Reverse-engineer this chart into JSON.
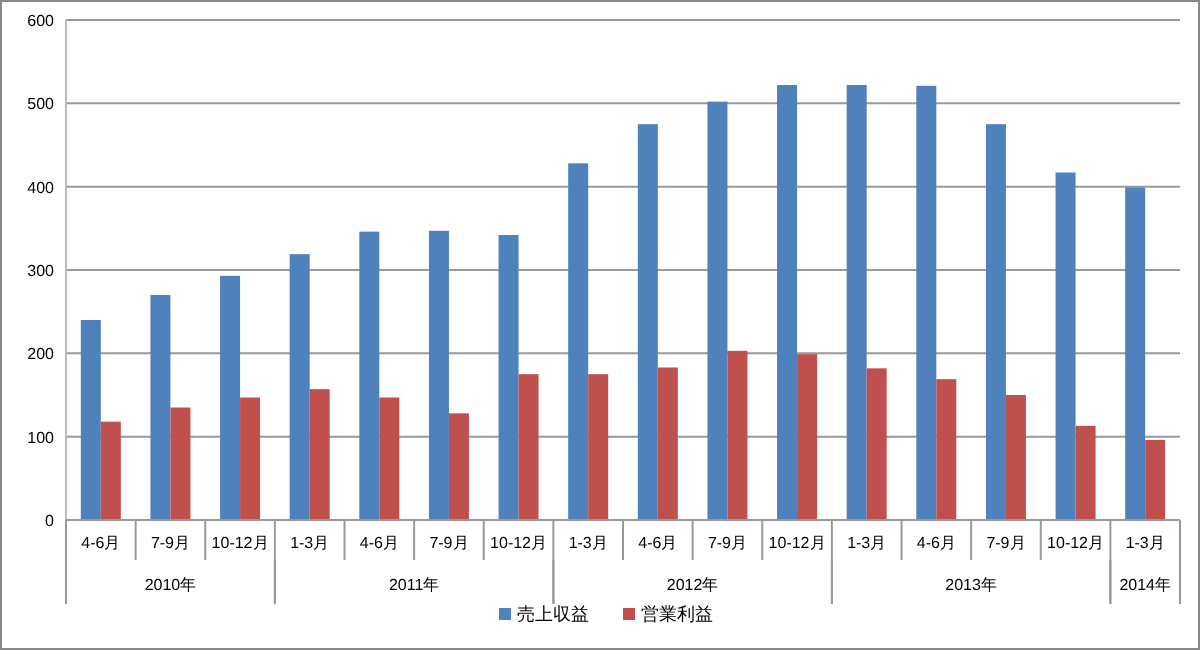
{
  "chart_data": {
    "type": "bar",
    "categories": [
      "4-6月",
      "7-9月",
      "10-12月",
      "1-3月",
      "4-6月",
      "7-9月",
      "10-12月",
      "1-3月",
      "4-6月",
      "7-9月",
      "10-12月",
      "1-3月",
      "4-6月",
      "7-9月",
      "10-12月",
      "1-3月"
    ],
    "series": [
      {
        "name": "売上収益",
        "color": "#4f81bd",
        "values": [
          240,
          270,
          293,
          319,
          346,
          347,
          342,
          428,
          475,
          502,
          522,
          522,
          521,
          475,
          417,
          399
        ]
      },
      {
        "name": "営業利益",
        "color": "#c0504d",
        "values": [
          118,
          135,
          147,
          157,
          147,
          128,
          175,
          175,
          183,
          203,
          199,
          182,
          169,
          150,
          113,
          96
        ]
      }
    ],
    "annotations": [
      "2010年",
      "2011年",
      "2012年",
      "2013年",
      "2014年"
    ],
    "ylim": [
      0,
      600
    ],
    "yticks": [
      0,
      100,
      200,
      300,
      400,
      500,
      600
    ],
    "grid": "y",
    "legend": "bottom"
  }
}
